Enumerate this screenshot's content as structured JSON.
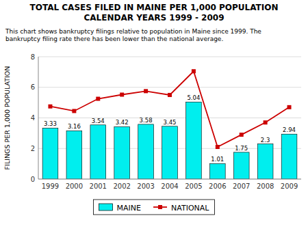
{
  "chart_data": {
    "type": "bar",
    "title": "TOTAL CASES FILED IN MAINE PER 1,000 POPULATION\nCALENDAR YEARS 1999 - 2009",
    "subtitle": "This chart shows bankruptcy filings relative to population in Maine since 1999.  The\nbankruptcy filing rate there has been lower than the national average.",
    "y_label": "FILINGS PER 1,000 POPULATION",
    "categories": [
      "1999",
      "2000",
      "2001",
      "2002",
      "2003",
      "2004",
      "2005",
      "2006",
      "2007",
      "2008",
      "2009"
    ],
    "series": [
      {
        "name": "MAINE",
        "type": "bar",
        "color": "#00EEEE",
        "data_labels": true,
        "values": [
          3.33,
          3.16,
          3.54,
          3.42,
          3.58,
          3.45,
          5.04,
          1.01,
          1.75,
          2.3,
          2.94
        ]
      },
      {
        "name": "NATIONAL",
        "type": "line",
        "color": "#CC0000",
        "marker": "square",
        "values": [
          4.75,
          4.45,
          5.25,
          5.52,
          5.75,
          5.5,
          7.05,
          2.1,
          2.9,
          3.7,
          4.7
        ]
      }
    ],
    "ylim": [
      0,
      8
    ],
    "yticks": [
      0,
      2,
      4,
      6,
      8
    ],
    "grid": true,
    "legend": "bottom"
  }
}
